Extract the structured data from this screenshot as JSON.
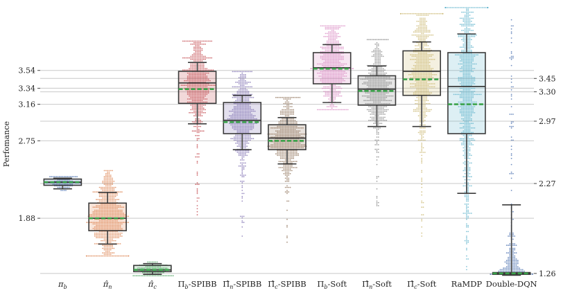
{
  "chart_data": {
    "type": "box-swarm",
    "ylabel": "Perfomance",
    "y_range": [
      1.22,
      4.3
    ],
    "grid": true,
    "left_ticks": [
      "3.54",
      "3.34",
      "3.16",
      "2.75",
      "1.88"
    ],
    "right_ticks": [
      "3.45",
      "3.30",
      "2.97",
      "2.27",
      "1.26"
    ],
    "left_tick_values": [
      3.54,
      3.34,
      3.16,
      2.75,
      1.88
    ],
    "right_tick_values": [
      3.45,
      3.3,
      2.97,
      2.27,
      1.26
    ],
    "groups": [
      {
        "label": "πb",
        "sub": "b",
        "base": "π",
        "hat": false,
        "tail": "",
        "color": "#4c72b0",
        "min": 2.21,
        "q1": 2.25,
        "median": 2.285,
        "mean": 2.285,
        "q3": 2.32,
        "max": 2.33,
        "pts_min": 2.2,
        "pts_max": 2.34,
        "count": 110
      },
      {
        "label": "π̂n",
        "sub": "n",
        "base": "π",
        "hat": true,
        "tail": "",
        "color": "#dd8452",
        "min": 1.59,
        "q1": 1.74,
        "median": 1.88,
        "mean": 1.88,
        "q3": 2.05,
        "max": 2.17,
        "pts_min": 1.46,
        "pts_max": 2.41,
        "count": 700
      },
      {
        "label": "π̂c",
        "sub": "c",
        "base": "π",
        "hat": true,
        "tail": "",
        "color": "#55a868",
        "min": 1.25,
        "q1": 1.28,
        "median": 1.3,
        "mean": 1.3,
        "q3": 1.35,
        "max": 1.37,
        "pts_min": 1.24,
        "pts_max": 1.39,
        "count": 140
      },
      {
        "label": "Πb-SPIBB",
        "sub": "b",
        "base": "Π",
        "hat": false,
        "tail": "-SPIBB",
        "color": "#c44e52",
        "min": 2.94,
        "q1": 3.17,
        "median": 3.4,
        "mean": 3.33,
        "q3": 3.53,
        "max": 3.63,
        "pts_min": 1.92,
        "pts_max": 3.87,
        "count": 600
      },
      {
        "label": "Π̂n-SPIBB",
        "sub": "n",
        "base": "Π",
        "hat": true,
        "tail": "-SPIBB",
        "color": "#8172b3",
        "min": 2.65,
        "q1": 2.83,
        "median": 2.98,
        "mean": 2.96,
        "q3": 3.18,
        "max": 3.26,
        "pts_min": 1.65,
        "pts_max": 3.52,
        "count": 600
      },
      {
        "label": "Π̂c-SPIBB",
        "sub": "c",
        "base": "Π",
        "hat": true,
        "tail": "-SPIBB",
        "color": "#937860",
        "min": 2.49,
        "q1": 2.65,
        "median": 2.78,
        "mean": 2.75,
        "q3": 2.93,
        "max": 3.01,
        "pts_min": 1.58,
        "pts_max": 3.23,
        "count": 600
      },
      {
        "label": "Πb-Soft",
        "sub": "b",
        "base": "Π",
        "hat": false,
        "tail": "-Soft",
        "color": "#da8bc3",
        "min": 3.18,
        "q1": 3.39,
        "median": 3.57,
        "mean": 3.56,
        "q3": 3.74,
        "max": 3.83,
        "pts_min": 3.1,
        "pts_max": 4.04,
        "count": 600
      },
      {
        "label": "Π̂n-Soft",
        "sub": "n",
        "base": "Π",
        "hat": true,
        "tail": "-Soft",
        "color": "#8c8c8c",
        "min": 2.91,
        "q1": 3.15,
        "median": 3.33,
        "mean": 3.31,
        "q3": 3.48,
        "max": 3.59,
        "pts_min": 1.98,
        "pts_max": 3.88,
        "count": 600
      },
      {
        "label": "Π̂c-Soft",
        "sub": "c",
        "base": "Π",
        "hat": true,
        "tail": "-Soft",
        "color": "#ccb974",
        "min": 2.91,
        "q1": 3.26,
        "median": 3.53,
        "mean": 3.44,
        "q3": 3.76,
        "max": 3.86,
        "pts_min": 1.67,
        "pts_max": 4.17,
        "count": 700
      },
      {
        "label": "RaMDP",
        "sub": "",
        "base": "RaMDP",
        "hat": false,
        "tail": "",
        "color": "#64b5cd",
        "min": 2.16,
        "q1": 2.83,
        "median": 3.36,
        "mean": 3.16,
        "q3": 3.74,
        "max": 3.95,
        "pts_min": 1.26,
        "pts_max": 4.25,
        "count": 900
      },
      {
        "label": "Double-DQN",
        "sub": "",
        "base": "Double-DQN",
        "hat": false,
        "tail": "",
        "color": "#4c72b0",
        "min": 1.24,
        "q1": 1.25,
        "median": 1.26,
        "mean": 1.26,
        "q3": 1.27,
        "max": 2.03,
        "pts_min": 1.24,
        "pts_max": 4.14,
        "count": 260,
        "dense_low": true
      }
    ]
  }
}
